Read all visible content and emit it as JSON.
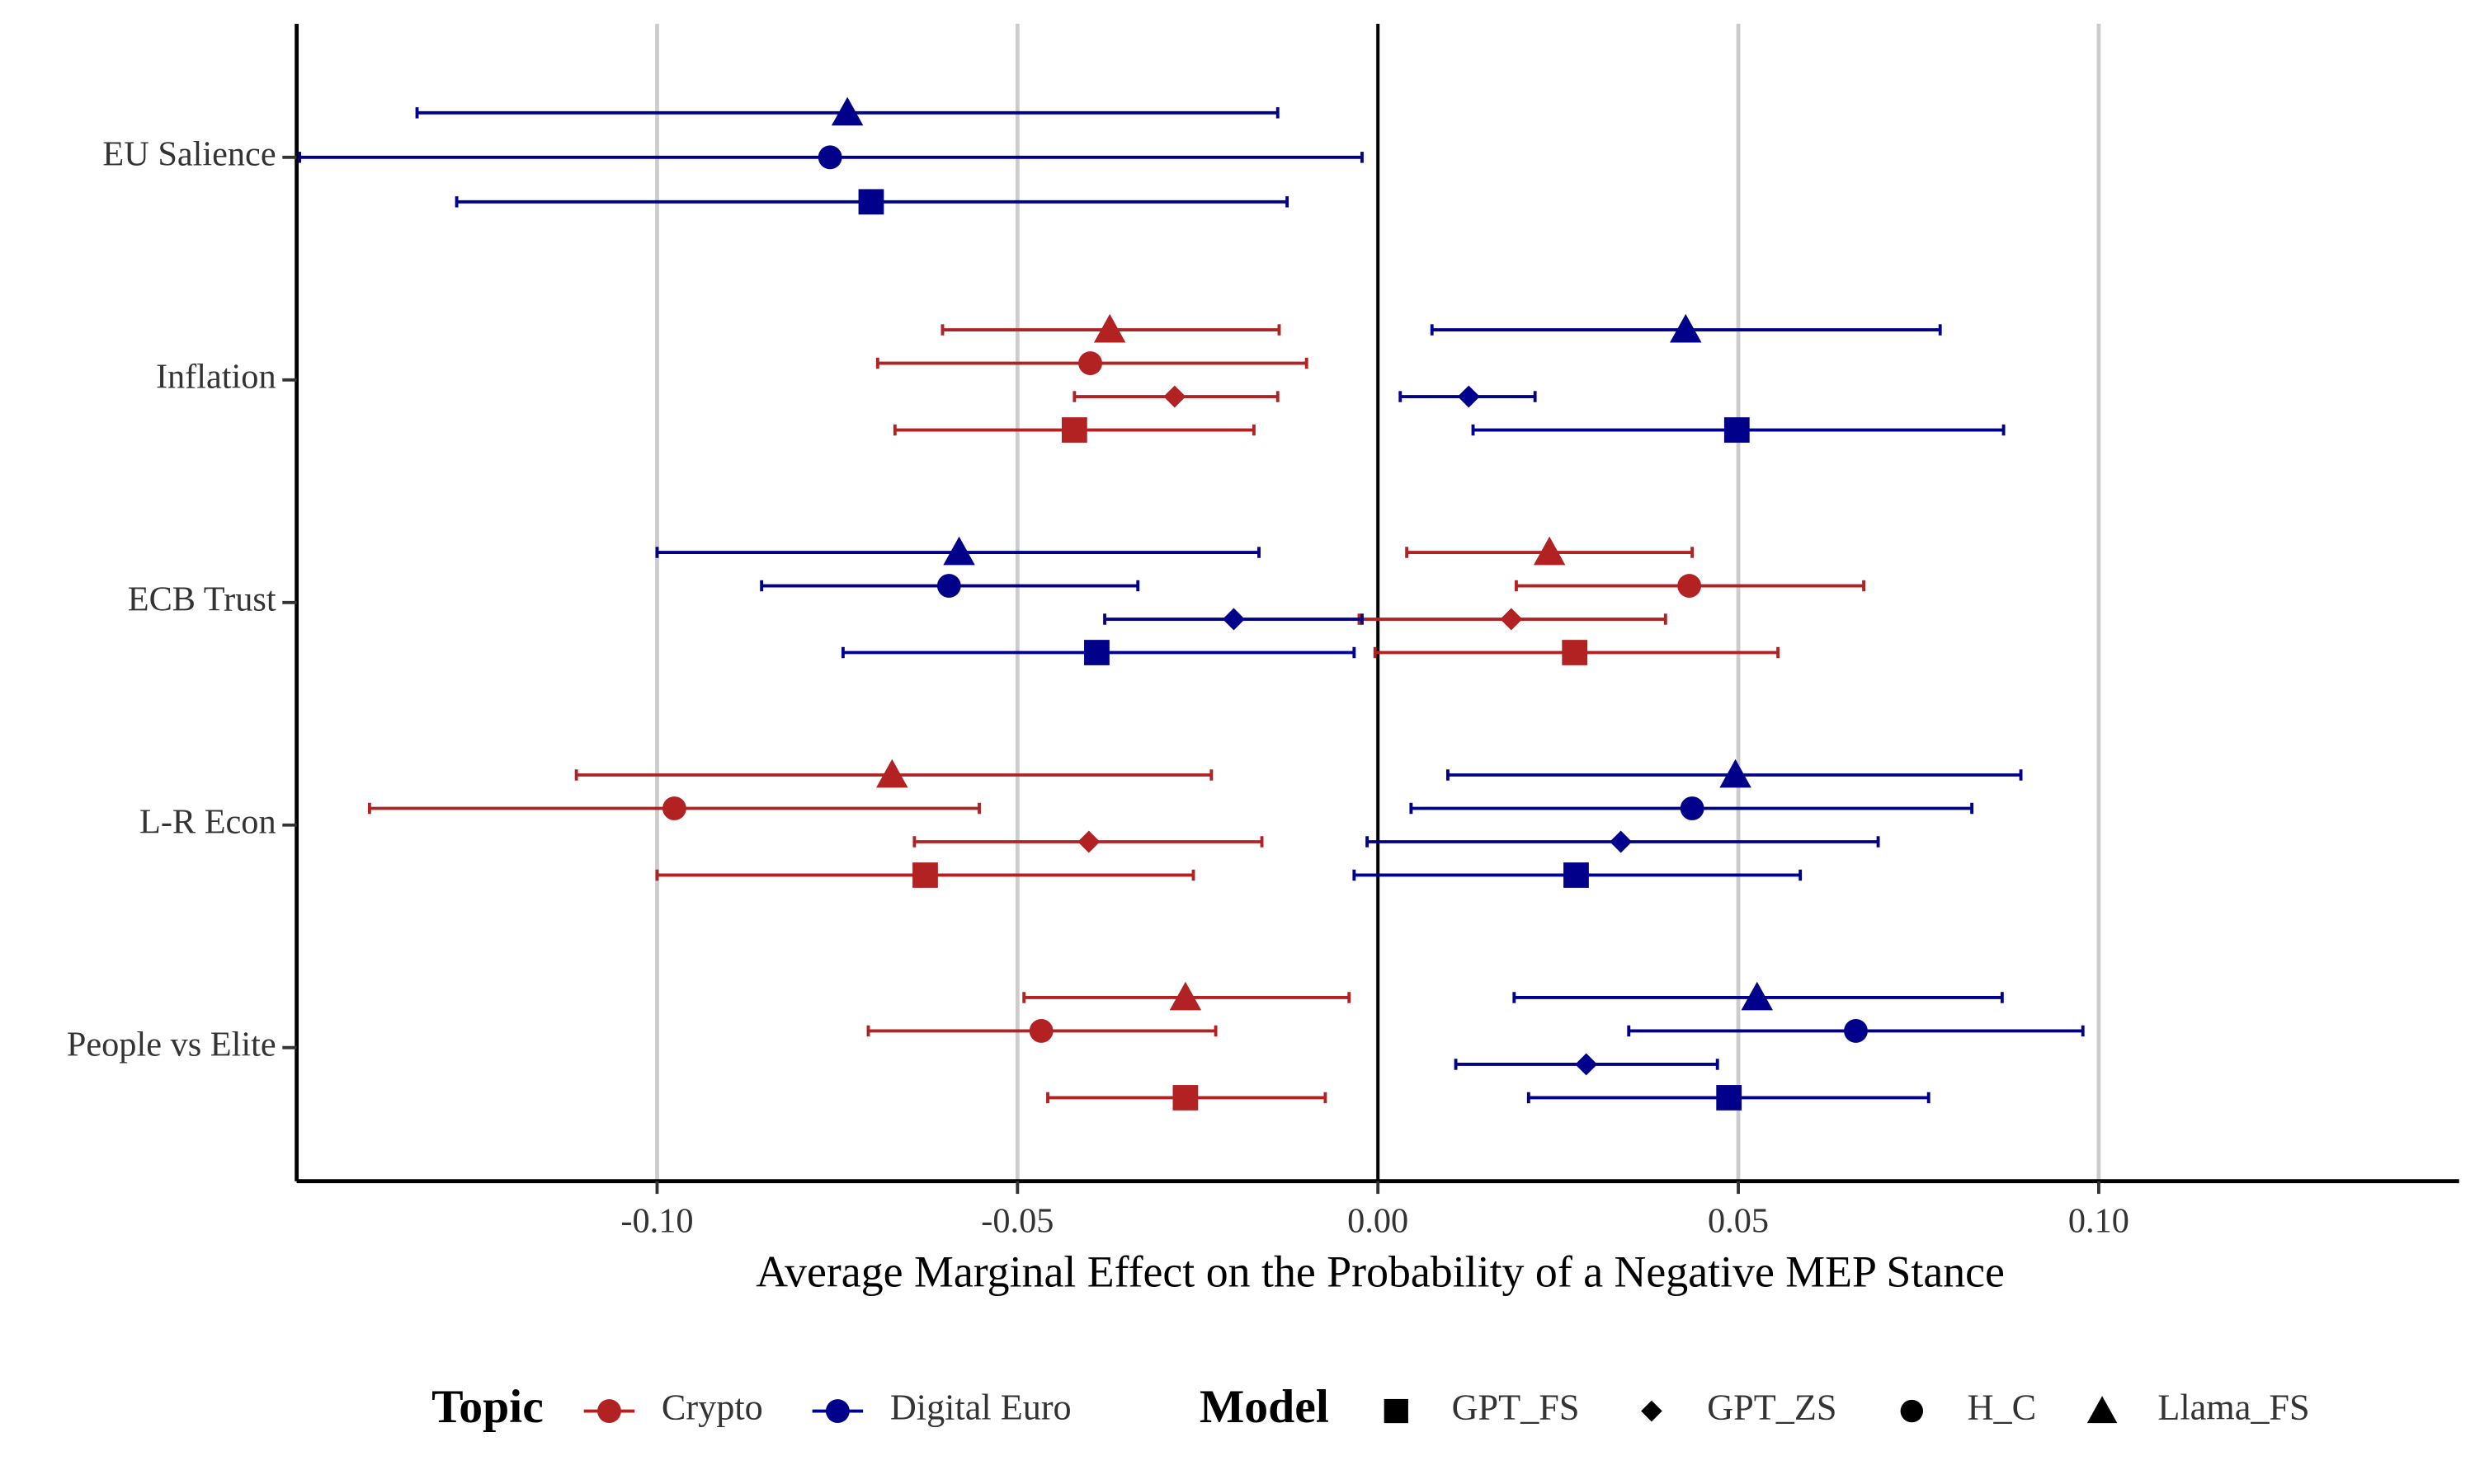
{
  "chart_data": {
    "type": "dotwhisker",
    "xlabel": "Average Marginal Effect on the Probability of a Negative MEP Stance",
    "categories": [
      "EU Salience",
      "Inflation",
      "ECB Trust",
      "L-R Econ",
      "People vs Elite"
    ],
    "xlim": [
      -0.15,
      0.15
    ],
    "xticks": [
      {
        "value": -0.1,
        "label": "-0.10"
      },
      {
        "value": -0.05,
        "label": "-0.05"
      },
      {
        "value": 0,
        "label": "0.00"
      },
      {
        "value": 0.05,
        "label": "0.05"
      },
      {
        "value": 0.1,
        "label": "0.10"
      }
    ],
    "grid": true,
    "reference_line": 0,
    "legend": {
      "topic_title": "Topic",
      "model_title": "Model",
      "position": "bottom"
    },
    "topics": [
      {
        "name": "Crypto",
        "color": "#b22222"
      },
      {
        "name": "Digital Euro",
        "color": "#00008b"
      }
    ],
    "models": [
      {
        "name": "GPT_FS",
        "shape": "square"
      },
      {
        "name": "GPT_ZS",
        "shape": "diamond"
      },
      {
        "name": "H_C",
        "shape": "circle"
      },
      {
        "name": "Llama_FS",
        "shape": "triangle"
      }
    ],
    "series": [
      {
        "topic": "Crypto",
        "model": "GPT_FS",
        "values": [
          null,
          -0.0421,
          0.0273,
          -0.0628,
          -0.0267
        ],
        "lower": [
          null,
          -0.067,
          -0.0004,
          -0.1,
          -0.0458
        ],
        "upper": [
          null,
          -0.0172,
          0.0555,
          -0.0256,
          -0.0073
        ]
      },
      {
        "topic": "Crypto",
        "model": "GPT_ZS",
        "values": [
          null,
          -0.0282,
          0.0185,
          -0.0401,
          null
        ],
        "lower": [
          null,
          -0.0421,
          -0.0026,
          -0.0643,
          null
        ],
        "upper": [
          null,
          -0.0139,
          0.0399,
          -0.0161,
          null
        ]
      },
      {
        "topic": "Crypto",
        "model": "H_C",
        "values": [
          null,
          -0.0399,
          0.0432,
          -0.0976,
          -0.0467
        ],
        "lower": [
          null,
          -0.0694,
          0.0192,
          -0.1399,
          -0.0707
        ],
        "upper": [
          null,
          -0.0099,
          0.0674,
          -0.0553,
          -0.0225
        ]
      },
      {
        "topic": "Crypto",
        "model": "Llama_FS",
        "values": [
          null,
          -0.0372,
          0.0238,
          -0.0674,
          -0.0267
        ],
        "lower": [
          null,
          -0.0604,
          0.004,
          -0.1112,
          -0.0491
        ],
        "upper": [
          null,
          -0.0137,
          0.0436,
          -0.0231,
          -0.004
        ]
      },
      {
        "topic": "Digital Euro",
        "model": "GPT_FS",
        "values": [
          -0.0703,
          0.0498,
          -0.039,
          0.0275,
          0.0487
        ],
        "lower": [
          -0.1278,
          0.0132,
          -0.0742,
          -0.0033,
          0.0209
        ],
        "upper": [
          -0.0126,
          0.0868,
          -0.0033,
          0.0586,
          0.0764
        ]
      },
      {
        "topic": "Digital Euro",
        "model": "GPT_ZS",
        "values": [
          null,
          0.0126,
          -0.02,
          0.0337,
          0.0289
        ],
        "lower": [
          null,
          0.0031,
          -0.0379,
          -0.0015,
          0.0108
        ],
        "upper": [
          null,
          0.0218,
          -0.0022,
          0.0694,
          0.0471
        ]
      },
      {
        "topic": "Digital Euro",
        "model": "H_C",
        "values": [
          -0.076,
          null,
          -0.0595,
          0.0436,
          0.0663
        ],
        "lower": [
          -0.1496,
          null,
          -0.0855,
          0.0046,
          0.0348
        ],
        "upper": [
          -0.0022,
          null,
          -0.0333,
          0.0824,
          0.0978
        ]
      },
      {
        "topic": "Digital Euro",
        "model": "Llama_FS",
        "values": [
          -0.0736,
          0.0427,
          -0.0581,
          0.0496,
          0.0526
        ],
        "lower": [
          -0.1333,
          0.0075,
          -0.1,
          0.0097,
          0.0189
        ],
        "upper": [
          -0.0139,
          0.078,
          -0.0165,
          0.0892,
          0.0866
        ]
      }
    ]
  }
}
